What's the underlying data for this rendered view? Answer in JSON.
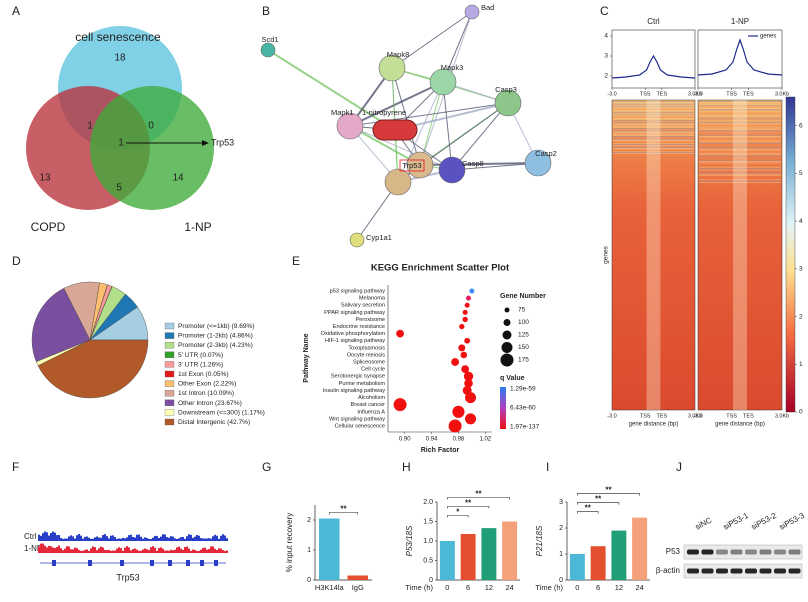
{
  "panel_labels": [
    "A",
    "B",
    "C",
    "D",
    "E",
    "F",
    "G",
    "H",
    "I",
    "J"
  ],
  "venn": {
    "sets": [
      {
        "name": "cell senescence",
        "color": "#5cc3df"
      },
      {
        "name": "COPD",
        "color": "#b8323b"
      },
      {
        "name": "1-NP",
        "color": "#3daa3a"
      }
    ],
    "regions": [
      18,
      1,
      0,
      1,
      13,
      5,
      14
    ],
    "target": "Trp53"
  },
  "network": {
    "nodes": [
      "Bad",
      "Scd1",
      "Mapk8",
      "Mapk3",
      "Casp3",
      "Mapk1",
      "1-nitropyrene",
      "Trp53",
      "Casp8",
      "Casp2",
      "Cyp1a1"
    ]
  },
  "heatmap": {
    "ylabel": "genes",
    "xlabel": "gene distance (bp)",
    "colorbar": {
      "lim": [
        0,
        6.6
      ],
      "ticks": [
        0,
        1,
        2,
        3,
        4,
        5,
        6
      ]
    }
  },
  "tracks": {
    "samples": [
      "Ctrl",
      "1-NP"
    ],
    "gene": "Trp53"
  },
  "western": {
    "lanes": [
      "siNC",
      "siP53-1",
      "siP53-2",
      "siP53-3"
    ],
    "proteins": [
      "P53",
      "β-actin"
    ]
  },
  "chart_data": [
    {
      "type": "pie",
      "categories": [
        "Promoter (<=1kb)",
        "Promoter (1-2kb)",
        "Promoter (2-3kb)",
        "5' UTR",
        "3' UTR",
        "1st Exon",
        "Other Exon",
        "1st Intron",
        "Other Intron",
        "Downstream (<=300)",
        "Distal Intergenic"
      ],
      "values": [
        9.69,
        4.86,
        4.23,
        0.07,
        1.26,
        0.05,
        2.22,
        10.09,
        23.67,
        1.17,
        42.7
      ],
      "value_labels": [
        "(9.69%)",
        "(4.86%)",
        "(4.23%)",
        "(0.07%)",
        "(1.26%)",
        "(0.05%)",
        "(2.22%)",
        "(10.09%)",
        "(23.67%)",
        "(1.17%)",
        "(42.7%)"
      ],
      "colors": [
        "#a6cee3",
        "#1f78b4",
        "#b2df8a",
        "#33a02c",
        "#fb9a99",
        "#e31a1c",
        "#fdbf6f",
        "#d9a796",
        "#7b4fa0",
        "#ffffb3",
        "#b15928"
      ]
    },
    {
      "type": "scatter",
      "title": "KEGG Enrichment Scatter Plot",
      "xlabel": "Rich Factor",
      "ylabel": "Pathway Name",
      "categories": [
        "p53 signaling pathway",
        "Melanoma",
        "Salivary secretion",
        "PPAR signaling pathway",
        "Peroxisome",
        "Endocrine resistance",
        "Oxidative phosphorylation",
        "HIF-1 signaling pathway",
        "Toxoplasmosis",
        "Oocyte meiosis",
        "Spliceosome",
        "Cell cycle",
        "Serotonergic synapse",
        "Purine metabolism",
        "Insulin signaling pathway",
        "Alcoholism",
        "Breast cancer",
        "Influenza A",
        "Wnt signaling pathway",
        "Cellular senescence"
      ],
      "values": [
        1.0,
        0.995,
        0.993,
        0.99,
        0.99,
        0.985,
        0.893,
        0.993,
        0.985,
        0.988,
        0.975,
        0.99,
        0.995,
        0.995,
        0.993,
        0.998,
        0.893,
        0.98,
        0.998,
        0.975
      ],
      "sizes": [
        75,
        75,
        75,
        75,
        80,
        80,
        110,
        85,
        100,
        95,
        110,
        110,
        130,
        120,
        125,
        150,
        175,
        165,
        150,
        175
      ],
      "colors": [
        "#3a8ff0",
        "#e0205a",
        "#f01010",
        "#f01010",
        "#f01010",
        "#f01010",
        "#f01010",
        "#f01010",
        "#f01010",
        "#f01010",
        "#f01010",
        "#f01010",
        "#f01010",
        "#f01010",
        "#f01010",
        "#f01010",
        "#f01010",
        "#f01010",
        "#f01010",
        "#f01010"
      ],
      "label_colors": [
        "#222222",
        "#222222",
        "#222222",
        "#222222",
        "#222222",
        "#222222",
        "#222222",
        "#222222",
        "#222222",
        "#222222",
        "#222222",
        "#e41a1c",
        "#222222",
        "#222222",
        "#222222",
        "#222222",
        "#222222",
        "#222222",
        "#222222",
        "#e41a1c"
      ],
      "xlim": [
        0.875,
        1.03
      ],
      "xticks": [
        {
          "value": 0.9,
          "label": "0.90"
        },
        0.94,
        0.98,
        1.02
      ],
      "size_legend": {
        "title": "Gene Number",
        "values": [
          75,
          100,
          125,
          150,
          175
        ]
      },
      "color_legend": {
        "title": "q Value",
        "ticks": [
          {
            "value": 1.29e-59,
            "label": "1.29e-59"
          },
          {
            "value": 6.43e-60,
            "label": "6.43e-60"
          },
          {
            "value": 1.97e-137,
            "label": "1.97e-137"
          }
        ],
        "colors": [
          "#2b7cf0",
          "#b040c0",
          "#f01010"
        ]
      }
    },
    {
      "type": "bar",
      "ylabel": "% input recovery",
      "categories": [
        "H3K14la",
        "IgG"
      ],
      "values": [
        2.05,
        0.15
      ],
      "colors": [
        "#4bb8d6",
        "#e4502f"
      ],
      "ylim": [
        0,
        2.5
      ],
      "yticks": [
        0,
        1,
        2
      ],
      "annotations": [
        "**"
      ]
    },
    {
      "type": "bar",
      "ylabel": "P53/18S",
      "xlabel": "Time (h)",
      "categories": [
        "0",
        "6",
        "12",
        "24"
      ],
      "values": [
        1.0,
        1.18,
        1.33,
        1.5
      ],
      "colors": [
        "#4bb8d6",
        "#e4502f",
        "#1f9e78",
        "#f4a07a"
      ],
      "ylim": [
        0,
        2
      ],
      "yticks": [
        0,
        0.5,
        {
          "value": 1,
          "label": "1.0"
        },
        1.5,
        {
          "value": 2,
          "label": "2.0"
        }
      ],
      "annotations": [
        "*",
        "**",
        "**"
      ]
    },
    {
      "type": "bar",
      "ylabel": "P21/18S",
      "xlabel": "Time (h)",
      "categories": [
        "0",
        "6",
        "12",
        "24"
      ],
      "values": [
        1.0,
        1.3,
        1.9,
        2.4
      ],
      "colors": [
        "#4bb8d6",
        "#e4502f",
        "#1f9e78",
        "#f4a07a"
      ],
      "ylim": [
        0,
        3
      ],
      "yticks": [
        0,
        1,
        2,
        3
      ],
      "annotations": [
        "**",
        "**",
        "**"
      ]
    },
    {
      "type": "line",
      "title": "Ctrl",
      "x": [
        -3,
        -2,
        -1,
        -0.5,
        -0.25,
        0,
        0.25,
        0.5,
        1,
        2,
        3
      ],
      "series": [
        {
          "name": "genes",
          "color": "#1f2a8a",
          "values": [
            1.9,
            1.95,
            2.05,
            2.3,
            2.7,
            3.0,
            2.7,
            2.3,
            2.05,
            1.95,
            1.9
          ]
        }
      ],
      "xlim": [
        -3,
        3
      ],
      "xticks": [
        {
          "value": -3,
          "label": "-3.0"
        },
        {
          "value": -0.6,
          "label": "TSS"
        },
        {
          "value": 0.6,
          "label": "TES"
        },
        {
          "value": 3,
          "label": "3.0Kb"
        }
      ],
      "ylim": [
        1.4,
        4.3
      ],
      "yticks": [
        2,
        3,
        4
      ]
    },
    {
      "type": "line",
      "title": "1-NP",
      "x": [
        -3,
        -2,
        -1,
        -0.5,
        -0.25,
        0,
        0.25,
        0.5,
        1,
        2,
        3
      ],
      "series": [
        {
          "name": "genes",
          "color": "#1f2a8a",
          "values": [
            2.05,
            2.1,
            2.3,
            2.7,
            3.3,
            3.8,
            3.3,
            2.7,
            2.3,
            2.1,
            2.05
          ]
        }
      ],
      "xlim": [
        -3,
        3
      ],
      "xticks": [
        {
          "value": -3,
          "label": "-3.0"
        },
        {
          "value": -0.6,
          "label": "TSS"
        },
        {
          "value": 0.6,
          "label": "TES"
        },
        {
          "value": 3,
          "label": "3.0Kb"
        }
      ],
      "ylim": [
        1.4,
        4.3
      ],
      "yticks": [
        2,
        3,
        4
      ],
      "legend": "upper right"
    }
  ]
}
